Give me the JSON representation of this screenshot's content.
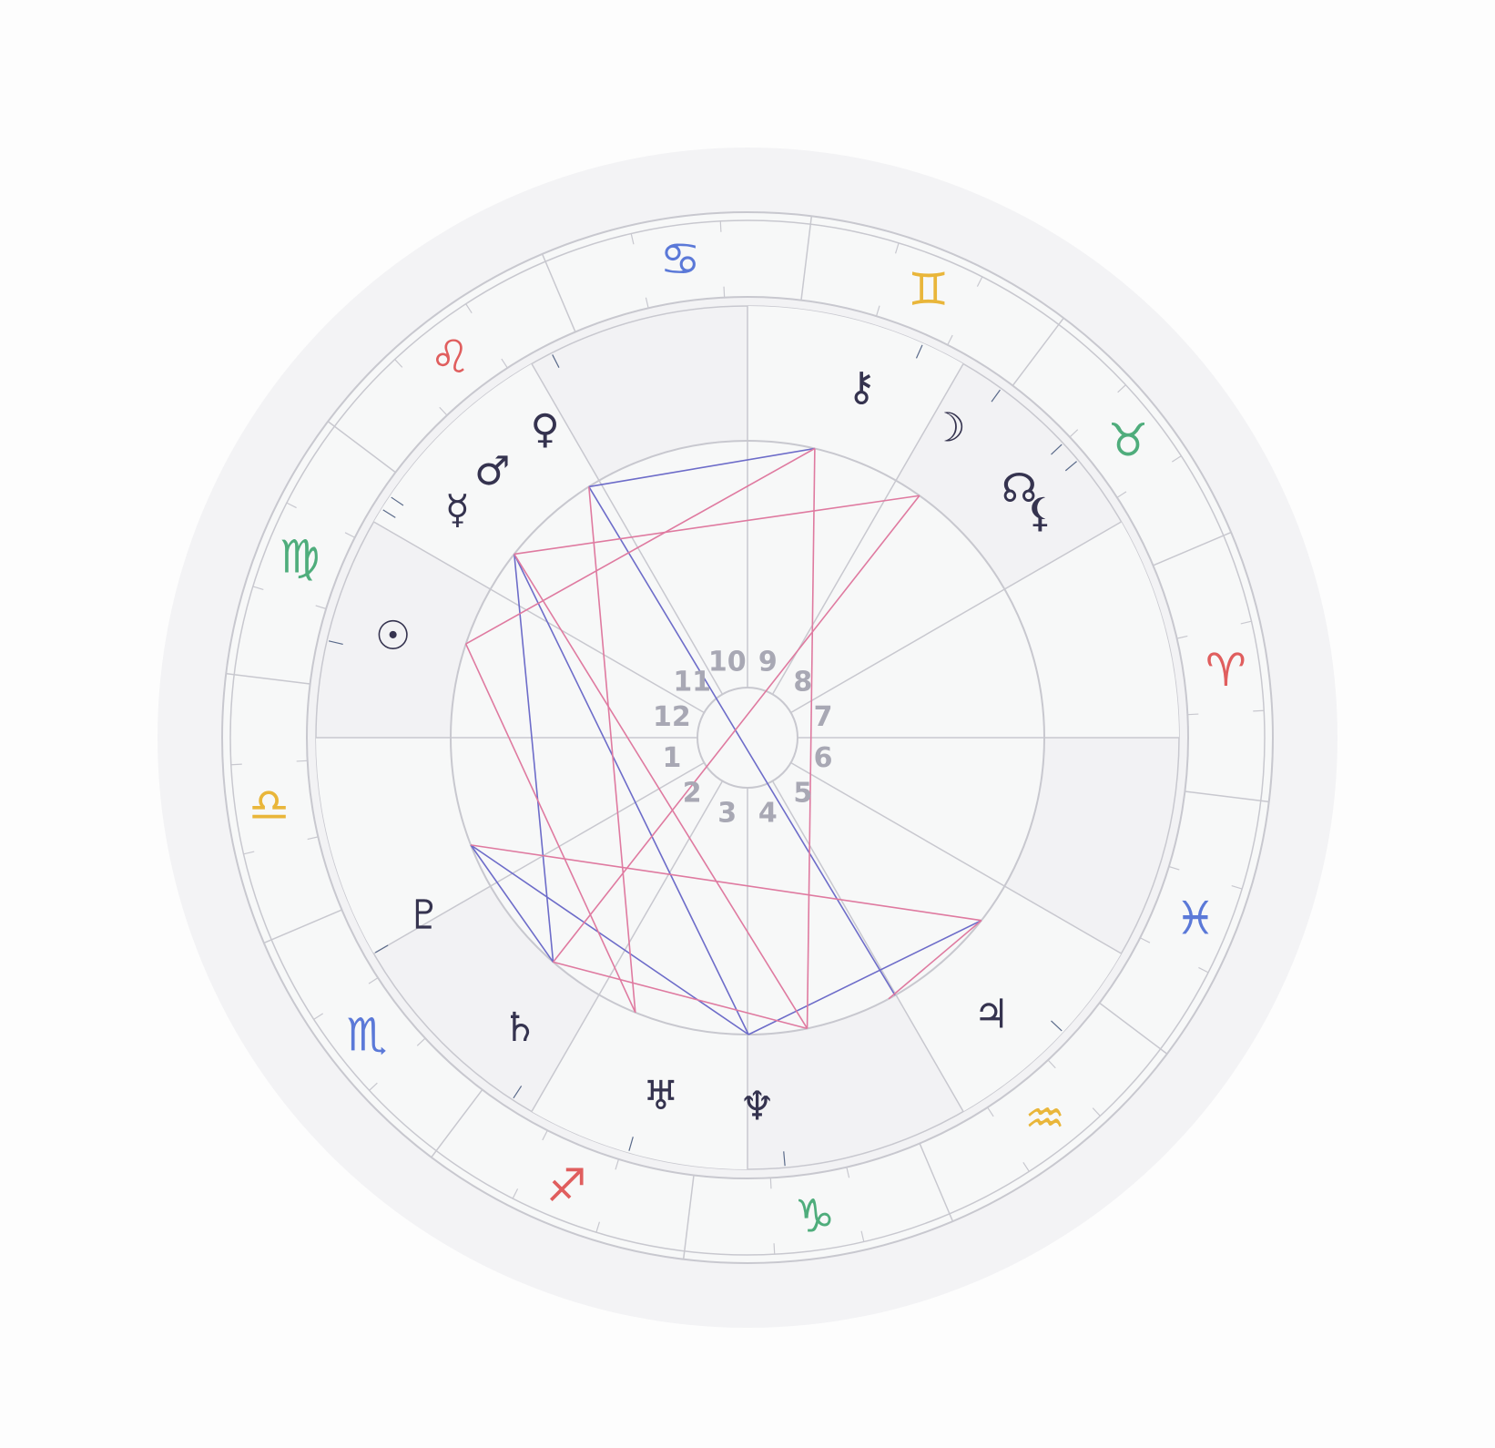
{
  "colors": {
    "outer_bg": "#f3f3f5",
    "ring_fill": "#f7f8f8",
    "house_band_dark": "#f2f2f4",
    "line": "#c8c8cf",
    "planet": "#35334f",
    "house_number": "#a8a8b4",
    "aspect_pink": "#df7aa0",
    "aspect_blue": "#6d6cc9",
    "fire": "#e05e5e",
    "earth": "#4fad7c",
    "air": "#e9b63a",
    "water": "#5b79d8"
  },
  "zodiac": [
    {
      "name": "aries-icon",
      "glyph": "♈",
      "color": "#e05e5e"
    },
    {
      "name": "taurus-icon",
      "glyph": "♉",
      "color": "#4fad7c"
    },
    {
      "name": "gemini-icon",
      "glyph": "♊",
      "color": "#e9b63a"
    },
    {
      "name": "cancer-icon",
      "glyph": "♋",
      "color": "#5b79d8"
    },
    {
      "name": "leo-icon",
      "glyph": "♌",
      "color": "#e05e5e"
    },
    {
      "name": "virgo-icon",
      "glyph": "♍",
      "color": "#4fad7c"
    },
    {
      "name": "libra-icon",
      "glyph": "♎",
      "color": "#e9b63a"
    },
    {
      "name": "scorpio-icon",
      "glyph": "♏",
      "color": "#5b79d8"
    },
    {
      "name": "sagittarius-icon",
      "glyph": "♐",
      "color": "#e05e5e"
    },
    {
      "name": "capricorn-icon",
      "glyph": "♑",
      "color": "#4fad7c"
    },
    {
      "name": "aquarius-icon",
      "glyph": "♒",
      "color": "#e9b63a"
    },
    {
      "name": "pisces-icon",
      "glyph": "♓",
      "color": "#5b79d8"
    }
  ],
  "houses": [
    "1",
    "2",
    "3",
    "4",
    "5",
    "6",
    "7",
    "8",
    "9",
    "10",
    "11",
    "12"
  ],
  "planets": [
    {
      "name": "sun-icon",
      "glyph": "☉"
    },
    {
      "name": "moon-icon",
      "glyph": "☽"
    },
    {
      "name": "mercury-icon",
      "glyph": "☿"
    },
    {
      "name": "venus-icon",
      "glyph": "♀"
    },
    {
      "name": "mars-icon",
      "glyph": "♂"
    },
    {
      "name": "jupiter-icon",
      "glyph": "♃"
    },
    {
      "name": "saturn-icon",
      "glyph": "♄"
    },
    {
      "name": "uranus-icon",
      "glyph": "♅"
    },
    {
      "name": "neptune-icon",
      "glyph": "♆"
    },
    {
      "name": "pluto-icon",
      "glyph": "♇"
    },
    {
      "name": "chiron-icon",
      "glyph": "⚷"
    },
    {
      "name": "north-node-icon",
      "glyph": "☊"
    },
    {
      "name": "lilith-icon",
      "glyph": "⚸"
    }
  ]
}
